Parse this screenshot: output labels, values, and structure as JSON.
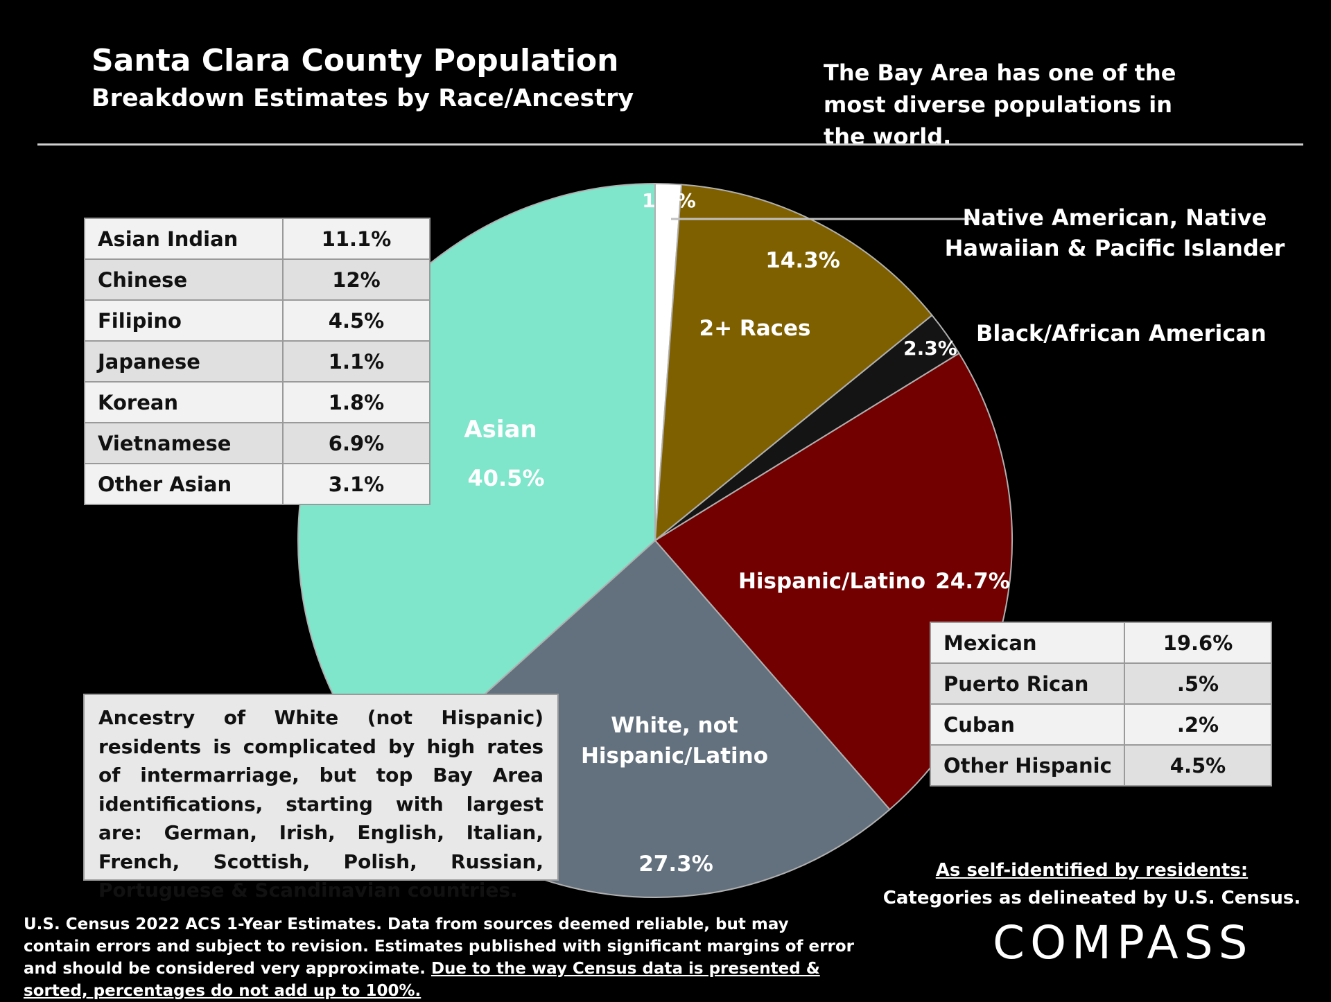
{
  "header": {
    "title": "Santa Clara County Population",
    "subtitle": "Breakdown Estimates by Race/Ancestry",
    "tagline": "The Bay Area has one of the most diverse populations in the world."
  },
  "chart_data": {
    "type": "pie",
    "title": "Santa Clara County Population",
    "subtitle": "Breakdown Estimates by Race/Ancestry",
    "unit": "%",
    "slices": [
      {
        "label": "Native American, Native Hawaiian & Pacific Islander",
        "value": 1.3,
        "display": "1.3%",
        "color": "#ffffff"
      },
      {
        "label": "2+ Races",
        "value": 14.3,
        "display": "14.3%",
        "color": "#7f6000"
      },
      {
        "label": "Black/African American",
        "value": 2.3,
        "display": "2.3%",
        "color": "#141414"
      },
      {
        "label": "Hispanic/Latino",
        "value": 24.7,
        "display": "24.7%",
        "color": "#720000"
      },
      {
        "label": "White, not Hispanic/Latino",
        "value": 27.3,
        "display": "27.3%",
        "color": "#63717e"
      },
      {
        "label": "Asian",
        "value": 40.5,
        "display": "40.5%",
        "color": "#7fe5cb"
      }
    ],
    "sub_breakdowns": {
      "Asian": [
        {
          "label": "Asian Indian",
          "value": "11.1%"
        },
        {
          "label": "Chinese",
          "value": "12%"
        },
        {
          "label": "Filipino",
          "value": "4.5%"
        },
        {
          "label": "Japanese",
          "value": "1.1%"
        },
        {
          "label": "Korean",
          "value": "1.8%"
        },
        {
          "label": "Vietnamese",
          "value": "6.9%"
        },
        {
          "label": "Other Asian",
          "value": "3.1%"
        }
      ],
      "Hispanic/Latino": [
        {
          "label": "Mexican",
          "value": "19.6%"
        },
        {
          "label": "Puerto Rican",
          "value": ".5%"
        },
        {
          "label": "Cuban",
          "value": ".2%"
        },
        {
          "label": "Other Hispanic",
          "value": "4.5%"
        }
      ]
    }
  },
  "labels": {
    "native_line1": "Native American, Native",
    "native_line2": "Hawaiian & Pacific Islander",
    "black": "Black/African American",
    "two_plus": "2+ Races",
    "hispanic": "Hispanic/Latino",
    "asian": "Asian",
    "white_line1": "White, not",
    "white_line2": "Hispanic/Latino"
  },
  "white_note": "Ancestry of White (not Hispanic) residents is complicated by high rates of  intermarriage, but top Bay Area identifications, starting with largest are: German, Irish, English, Italian, French, Scottish, Polish, Russian, Portuguese & Scandinavian countries.",
  "self_identified": {
    "line1": "As self-identified by residents:",
    "line2": "Categories as delineated by U.S. Census."
  },
  "source": {
    "text": "U.S. Census 2022 ACS 1-Year Estimates. Data from sources deemed reliable, but may contain errors and subject to revision. Estimates published with significant margins of error and should be considered very approximate.",
    "underlined": "Due to the way Census data is presented & sorted, percentages do not add up to 100%."
  },
  "brand": {
    "logo": "COMPASS"
  }
}
